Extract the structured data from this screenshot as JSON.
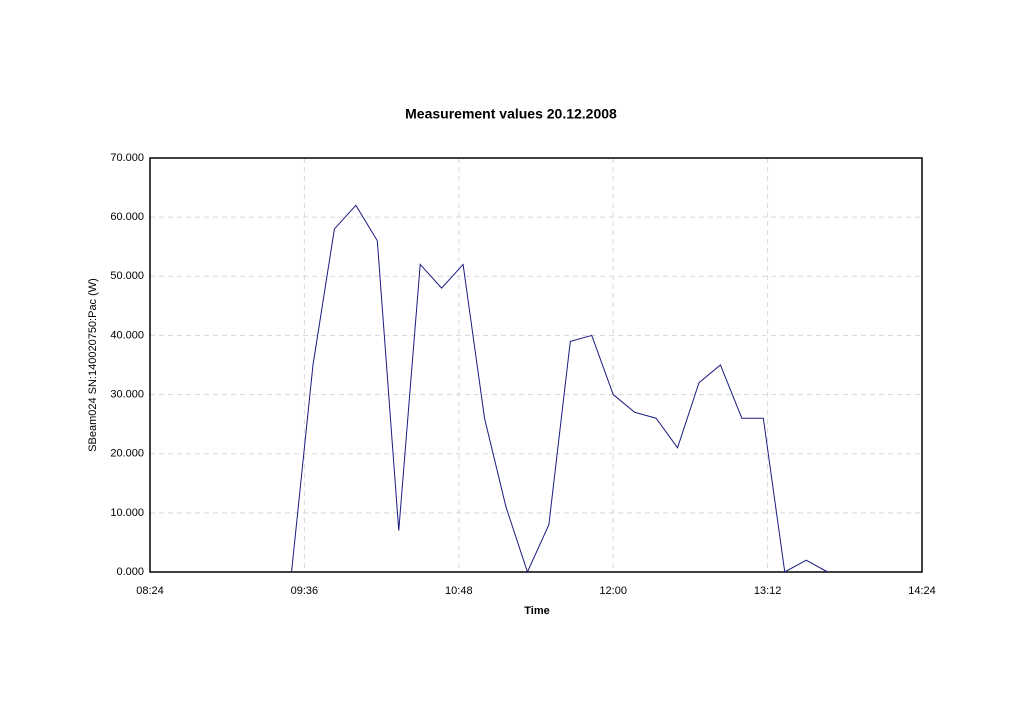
{
  "chart_data": {
    "type": "line",
    "title": "Measurement values 20.12.2008",
    "x_label": "Time",
    "y_label": "SBeam024 SN:140020750:Pac (W)",
    "x": [
      "09:30",
      "09:40",
      "09:50",
      "10:00",
      "10:10",
      "10:20",
      "10:30",
      "10:40",
      "10:50",
      "11:00",
      "11:10",
      "11:20",
      "11:30",
      "11:40",
      "11:50",
      "12:00",
      "12:10",
      "12:20",
      "12:30",
      "12:40",
      "12:50",
      "13:00",
      "13:10",
      "13:20",
      "13:30",
      "13:40"
    ],
    "series": [
      {
        "name": "SBeam024 SN:140020750:Pac",
        "color": "#1a1a80",
        "values": [
          0,
          35,
          58,
          62,
          56,
          7,
          52,
          48,
          52,
          26,
          11,
          0,
          8,
          39,
          40,
          30,
          27,
          26,
          21,
          32,
          35,
          26,
          26,
          0,
          2,
          0
        ]
      }
    ],
    "xlim": [
      "08:24",
      "14:24"
    ],
    "xticks": [
      "08:24",
      "09:36",
      "10:48",
      "12:00",
      "13:12",
      "14:24"
    ],
    "ylim": [
      0,
      70
    ],
    "yticks": [
      {
        "value": 0,
        "label": "0.000"
      },
      {
        "value": 10,
        "label": "10.000"
      },
      {
        "value": 20,
        "label": "20.000"
      },
      {
        "value": 30,
        "label": "30.000"
      },
      {
        "value": 40,
        "label": "40.000"
      },
      {
        "value": 50,
        "label": "50.000"
      },
      {
        "value": 60,
        "label": "60.000"
      },
      {
        "value": 70,
        "label": "70.000"
      }
    ],
    "grid": true
  }
}
